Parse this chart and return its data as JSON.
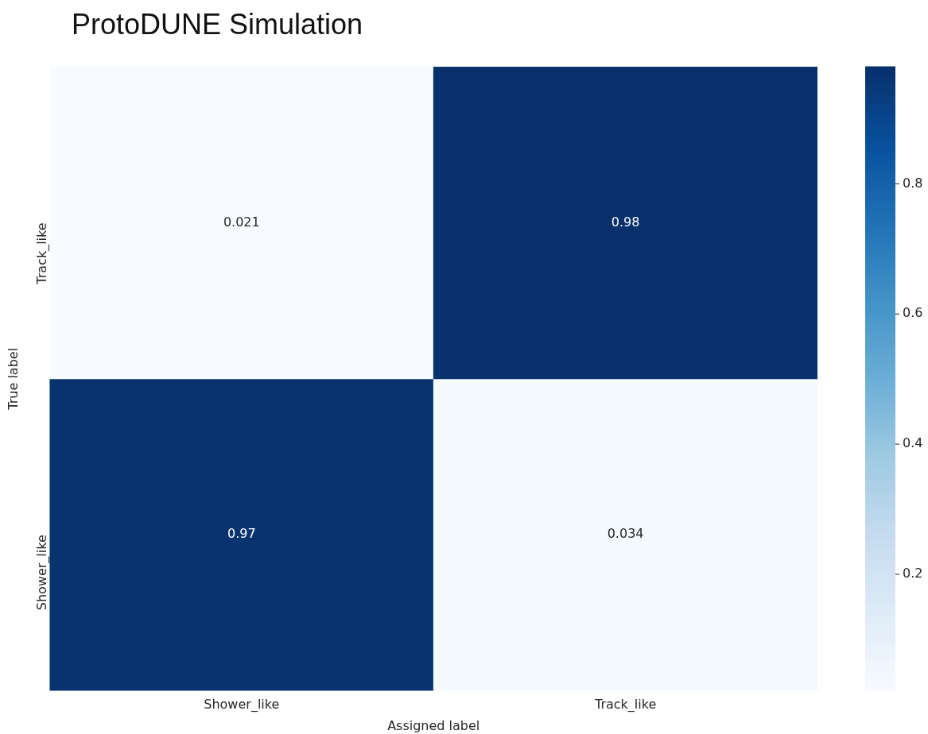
{
  "chart_data": {
    "type": "heatmap",
    "title": "ProtoDUNE Simulation",
    "xlabel": "Assigned label",
    "ylabel": "True label",
    "categories": [
      "Shower_like",
      "Track_like"
    ],
    "y_categories": [
      "Track_like",
      "Shower_like"
    ],
    "cells": [
      [
        0.021,
        0.98
      ],
      [
        0.97,
        0.034
      ]
    ],
    "data_labels": true,
    "clim": [
      0.021,
      0.98
    ],
    "cticks": [
      0.2,
      0.4,
      0.6,
      0.8
    ]
  }
}
